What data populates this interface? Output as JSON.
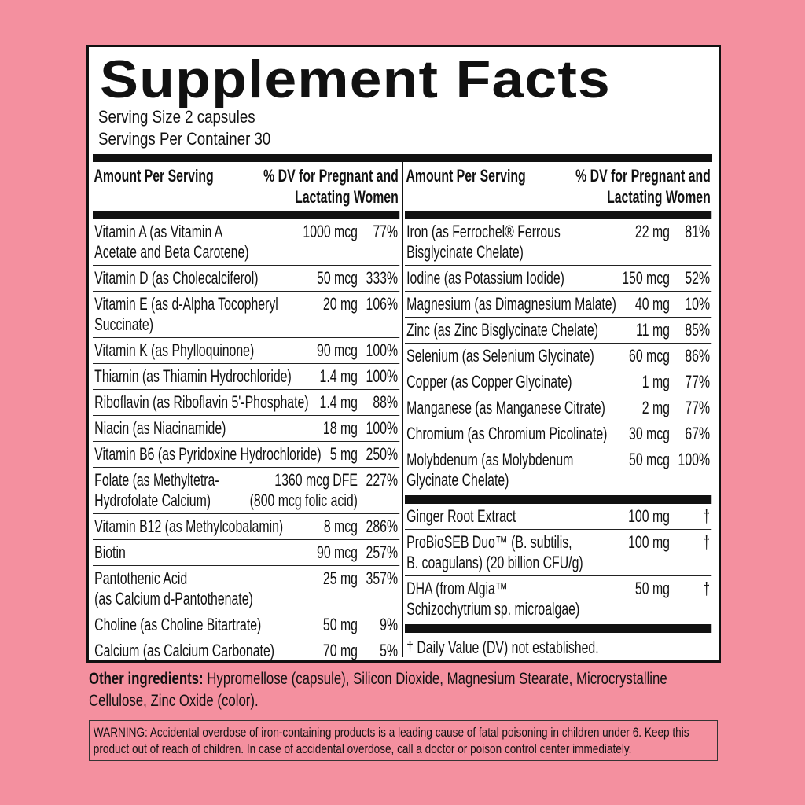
{
  "title": "Supplement Facts",
  "serving_size": "Serving Size 2 capsules",
  "servings_per_container": "Servings Per Container 30",
  "header": {
    "amount": "Amount Per Serving",
    "dv": "% DV for Pregnant and\nLactating Women"
  },
  "left_rows": [
    {
      "name": "Vitamin A (as Vitamin A\nAcetate and Beta Carotene)",
      "amount": "1000 mcg",
      "dv": "77%"
    },
    {
      "name": "Vitamin D (as Cholecalciferol)",
      "amount": "50 mcg",
      "dv": "333%"
    },
    {
      "name": "Vitamin E (as d-Alpha Tocopheryl\nSuccinate)",
      "amount": "20 mg",
      "dv": "106%"
    },
    {
      "name": "Vitamin K (as Phylloquinone)",
      "amount": "90 mcg",
      "dv": "100%"
    },
    {
      "name": "Thiamin (as Thiamin Hydrochloride)",
      "amount": "1.4 mg",
      "dv": "100%"
    },
    {
      "name": "Riboflavin (as Riboflavin 5'-Phosphate)",
      "amount": "1.4 mg",
      "dv": "88%"
    },
    {
      "name": "Niacin (as Niacinamide)",
      "amount": "18 mg",
      "dv": "100%"
    },
    {
      "name": "Vitamin B6 (as Pyridoxine Hydrochloride)",
      "amount": "5 mg",
      "dv": "250%"
    },
    {
      "name": "Folate (as Methyltetra-\nHydrofolate Calcium)",
      "amount": "1360 mcg DFE\n(800 mcg folic acid)",
      "dv": "227%"
    },
    {
      "name": "Vitamin B12  (as Methylcobalamin)",
      "amount": "8 mcg",
      "dv": "286%"
    },
    {
      "name": "Biotin",
      "amount": "90 mcg",
      "dv": "257%"
    },
    {
      "name": "Pantothenic Acid\n(as Calcium d-Pantothenate)",
      "amount": "25 mg",
      "dv": "357%"
    },
    {
      "name": "Choline (as Choline Bitartrate)",
      "amount": "50 mg",
      "dv": "9%"
    },
    {
      "name": "Calcium (as Calcium Carbonate)",
      "amount": "70 mg",
      "dv": "5%"
    }
  ],
  "right_rows": [
    {
      "name": "Iron (as Ferrochel® Ferrous\nBisglycinate Chelate)",
      "amount": "22 mg",
      "dv": "81%"
    },
    {
      "name": "Iodine (as Potassium Iodide)",
      "amount": "150 mcg",
      "dv": "52%"
    },
    {
      "name": "Magnesium (as Dimagnesium Malate)",
      "amount": "40 mg",
      "dv": "10%"
    },
    {
      "name": "Zinc (as Zinc Bisglycinate Chelate)",
      "amount": "11 mg",
      "dv": "85%"
    },
    {
      "name": "Selenium (as Selenium Glycinate)",
      "amount": "60 mcg",
      "dv": "86%"
    },
    {
      "name": "Copper (as Copper Glycinate)",
      "amount": "1 mg",
      "dv": "77%"
    },
    {
      "name": "Manganese (as Manganese Citrate)",
      "amount": "2 mg",
      "dv": "77%"
    },
    {
      "name": "Chromium (as Chromium Picolinate)",
      "amount": "30 mcg",
      "dv": "67%"
    },
    {
      "name": "Molybdenum (as Molybdenum\nGlycinate Chelate)",
      "amount": "50 mcg",
      "dv": "100%"
    }
  ],
  "other_rows": [
    {
      "name": "Ginger Root Extract",
      "amount": "100 mg",
      "dv": "†"
    },
    {
      "name": "ProBioSEB Duo™ (B. subtilis,\nB. coagulans) (20 billion CFU/g)",
      "amount": "100 mg",
      "dv": "†"
    },
    {
      "name": "DHA (from Algia™\nSchizochytrium sp. microalgae)",
      "amount": "50 mg",
      "dv": "†"
    }
  ],
  "footnote": "† Daily Value (DV) not established.",
  "other_ingredients": {
    "label": "Other ingredients:",
    "text": " Hypromellose (capsule), Silicon Dioxide, Magnesium Stearate, Microcrystalline Cellulose, Zinc Oxide (color)."
  },
  "warning": "WARNING: Accidental overdose of iron-containing products is a leading cause of fatal poisoning in children under 6. Keep this product out of reach of children. In case of accidental overdose, call a doctor or poison control center immediately.",
  "colors": {
    "background": "#f4909f",
    "ink": "#111111",
    "panel": "#ffffff"
  }
}
